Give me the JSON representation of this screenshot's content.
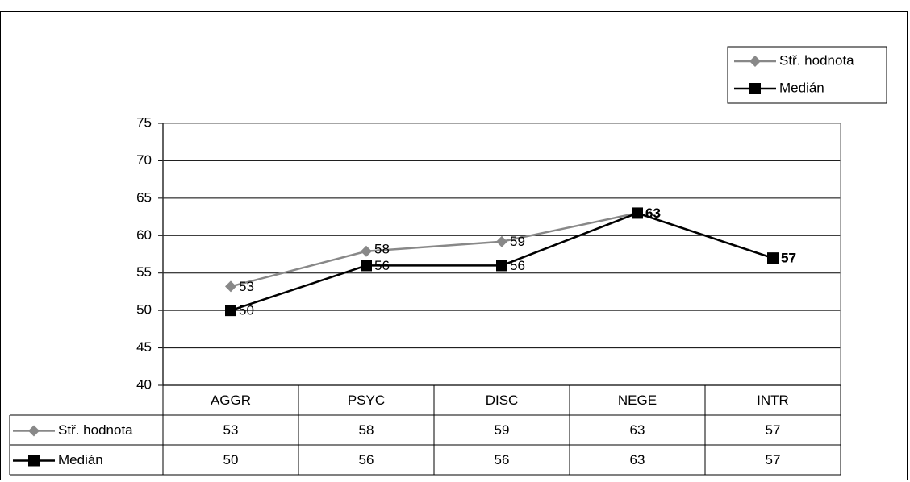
{
  "chart_data": {
    "type": "line",
    "categories": [
      "AGGR",
      "PSYC",
      "DISC",
      "NEGE",
      "INTR"
    ],
    "series": [
      {
        "name": "Stř. hodnota",
        "values": [
          53.2,
          57.9,
          59.2,
          63,
          57
        ],
        "labels": [
          "53",
          "58",
          "59",
          "63",
          "57"
        ],
        "color": "#888888",
        "marker": "diamond"
      },
      {
        "name": "Medián",
        "values": [
          50,
          56,
          56,
          63,
          57
        ],
        "labels": [
          "50",
          "56",
          "56",
          "63",
          "57"
        ],
        "color": "#000000",
        "marker": "square"
      }
    ],
    "y_ticks": [
      "75",
      "70",
      "65",
      "60",
      "55",
      "50",
      "45",
      "40"
    ],
    "ylim": [
      40,
      75
    ],
    "table_rows": [
      {
        "name": "Stř. hodnota",
        "values": [
          "53",
          "58",
          "59",
          "63",
          "57"
        ]
      },
      {
        "name": "Medián",
        "values": [
          "50",
          "56",
          "56",
          "63",
          "57"
        ]
      }
    ],
    "legend": {
      "position": "top-right",
      "items": [
        "Stř. hodnota",
        "Medián"
      ]
    },
    "grid": true
  }
}
